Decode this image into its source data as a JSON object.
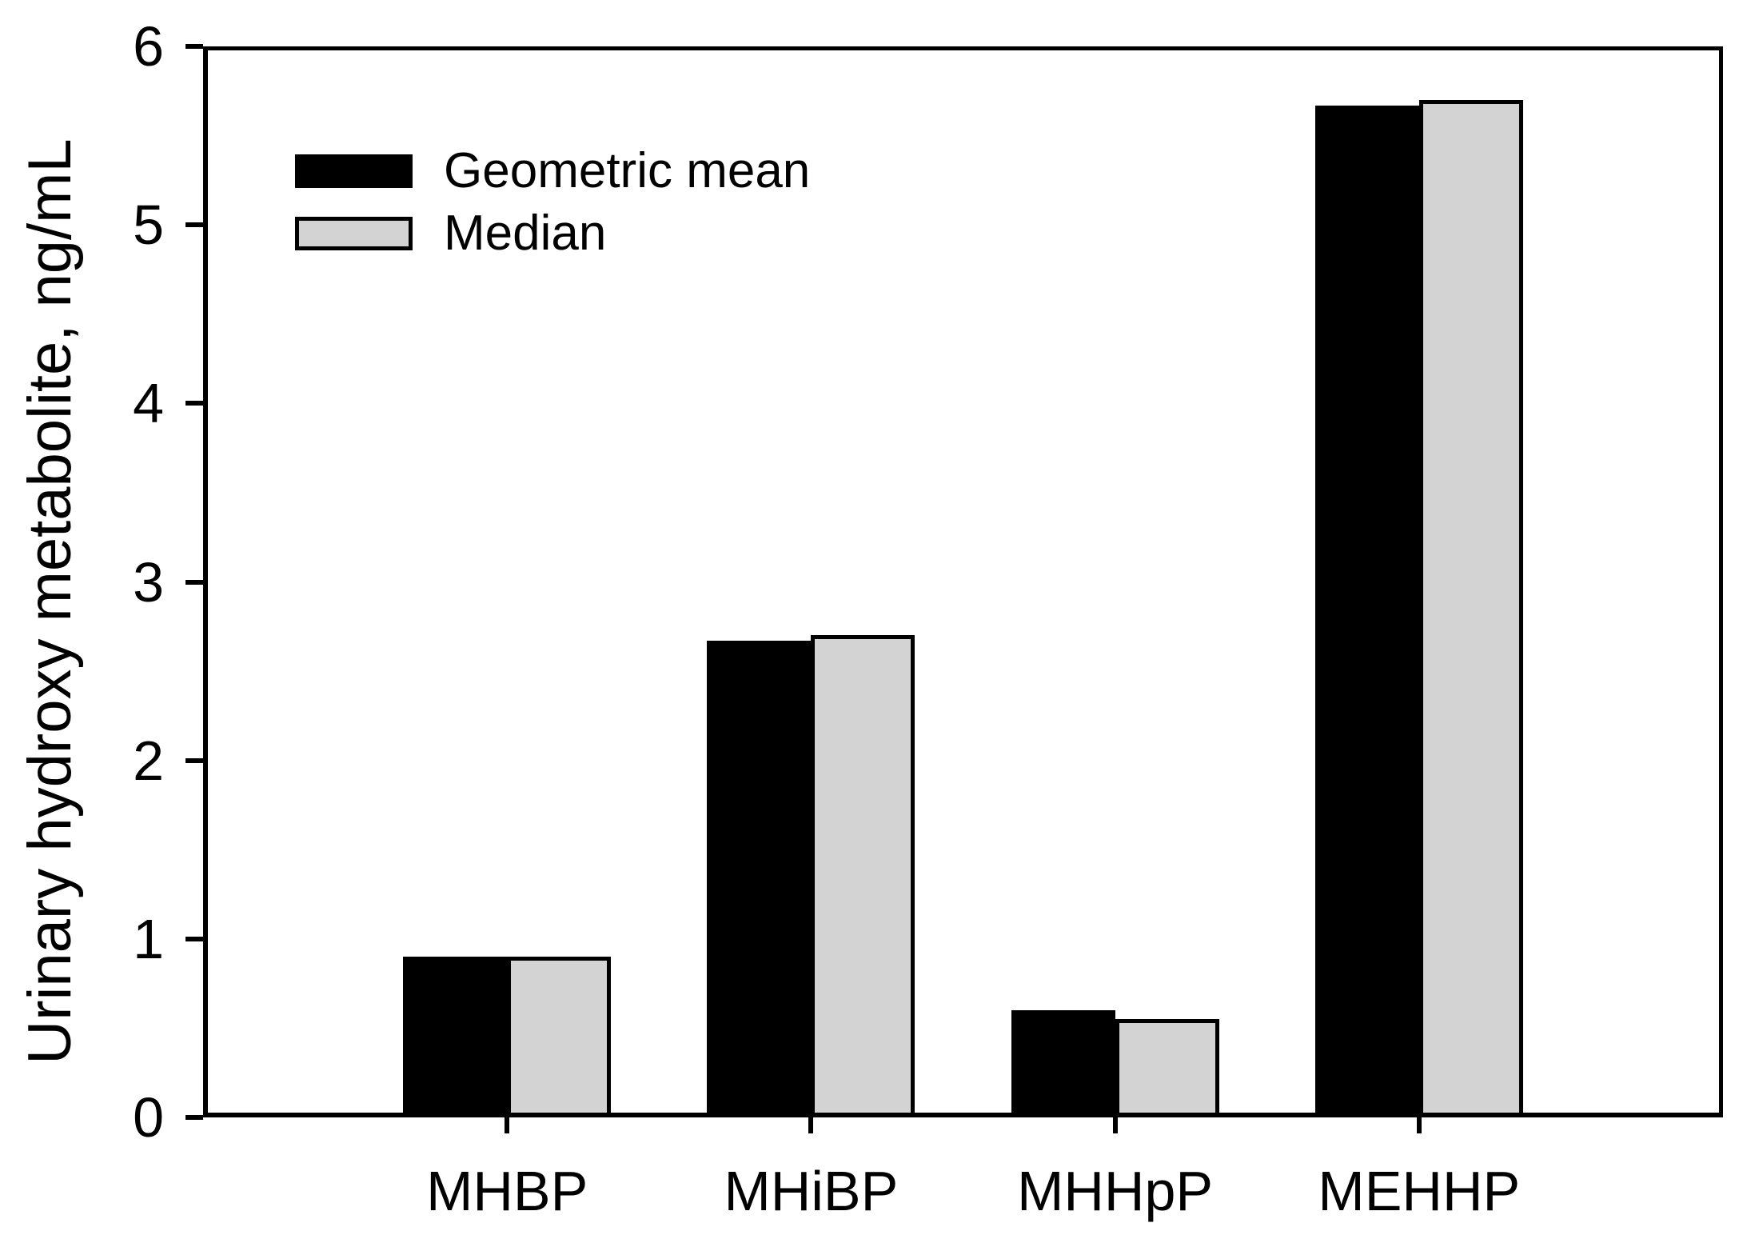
{
  "chart_data": {
    "type": "bar",
    "title": "",
    "categories": [
      "MHBP",
      "MHiBP",
      "MHHpP",
      "MEHHP"
    ],
    "series": [
      {
        "name": "Geometric mean",
        "color": "#000000",
        "values": [
          0.9,
          2.67,
          0.6,
          5.67
        ]
      },
      {
        "name": "Median",
        "color": "#d3d3d3",
        "values": [
          0.9,
          2.7,
          0.55,
          5.7
        ]
      }
    ],
    "xlabel": "",
    "ylabel": "Urinary hydroxy metabolite, ng/mL",
    "ylim": [
      0,
      6
    ],
    "yticks": [
      0,
      1,
      2,
      3,
      4,
      5,
      6
    ],
    "grid": false,
    "legend_position": "upper-left",
    "bar_outline_color": "#000000",
    "axis_color": "#000000",
    "background": "#ffffff"
  }
}
